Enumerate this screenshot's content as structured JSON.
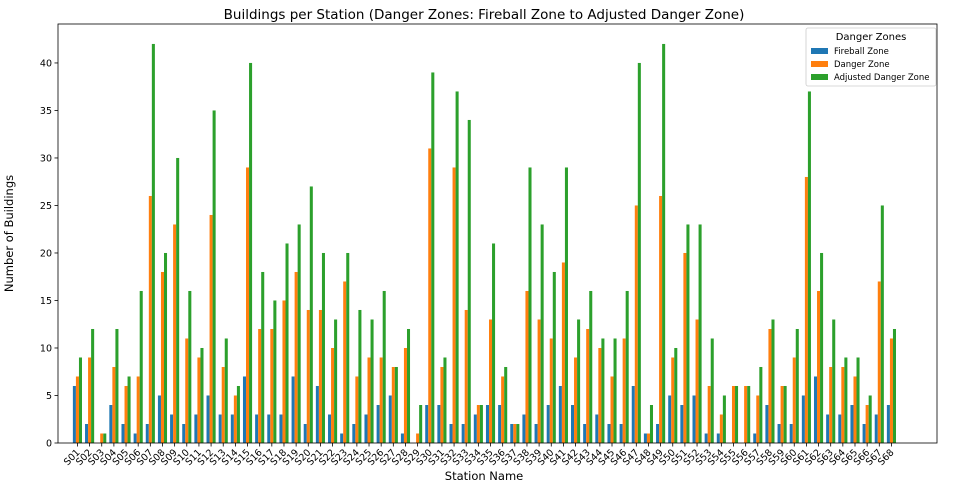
{
  "chart_data": {
    "type": "bar",
    "title": "Buildings per Station (Danger Zones: Fireball Zone to Adjusted Danger Zone)",
    "xlabel": "Station Name",
    "ylabel": "Number of Buildings",
    "ylim": [
      0,
      44.1
    ],
    "yticks": [
      0,
      5,
      10,
      15,
      20,
      25,
      30,
      35,
      40
    ],
    "grid": false,
    "legend": {
      "title": "Danger Zones",
      "placement": "top-right"
    },
    "categories": [
      "S01",
      "S02",
      "S03",
      "S04",
      "S05",
      "S06",
      "S07",
      "S08",
      "S09",
      "S10",
      "S11",
      "S12",
      "S13",
      "S14",
      "S15",
      "S16",
      "S17",
      "S18",
      "S19",
      "S20",
      "S21",
      "S22",
      "S23",
      "S24",
      "S25",
      "S26",
      "S27",
      "S28",
      "S29",
      "S30",
      "S31",
      "S32",
      "S33",
      "S34",
      "S35",
      "S36",
      "S37",
      "S38",
      "S39",
      "S40",
      "S41",
      "S42",
      "S43",
      "S44",
      "S45",
      "S46",
      "S47",
      "S48",
      "S49",
      "S50",
      "S51",
      "S52",
      "S53",
      "S54",
      "S55",
      "S56",
      "S57",
      "S58",
      "S59",
      "S60",
      "S61",
      "S62",
      "S63",
      "S64",
      "S65",
      "S66",
      "S67",
      "S68"
    ],
    "series": [
      {
        "name": "Fireball Zone",
        "color": "#1f77b4",
        "values": [
          6,
          2,
          0,
          4,
          2,
          1,
          2,
          5,
          3,
          2,
          3,
          5,
          3,
          3,
          7,
          3,
          3,
          3,
          7,
          2,
          6,
          3,
          1,
          2,
          3,
          4,
          5,
          1,
          0,
          4,
          4,
          2,
          2,
          3,
          4,
          4,
          2,
          3,
          2,
          4,
          6,
          4,
          2,
          3,
          2,
          2,
          6,
          1,
          2,
          5,
          4,
          5,
          1,
          1,
          0,
          0,
          1,
          4,
          2,
          2,
          5,
          7,
          3,
          3,
          4,
          2,
          3,
          4
        ]
      },
      {
        "name": "Danger Zone",
        "color": "#ff7f0e",
        "values": [
          7,
          9,
          1,
          8,
          6,
          7,
          26,
          18,
          23,
          11,
          9,
          24,
          8,
          5,
          29,
          12,
          12,
          15,
          18,
          14,
          14,
          10,
          17,
          7,
          9,
          9,
          8,
          10,
          1,
          31,
          8,
          29,
          14,
          4,
          13,
          7,
          2,
          16,
          13,
          11,
          19,
          9,
          12,
          10,
          7,
          11,
          25,
          1,
          26,
          9,
          20,
          13,
          6,
          3,
          6,
          6,
          5,
          12,
          6,
          9,
          28,
          16,
          8,
          8,
          7,
          4,
          17,
          11
        ]
      },
      {
        "name": "Adjusted Danger Zone",
        "color": "#2ca02c",
        "values": [
          9,
          12,
          1,
          12,
          7,
          16,
          42,
          20,
          30,
          16,
          10,
          35,
          11,
          6,
          40,
          18,
          15,
          21,
          23,
          27,
          20,
          13,
          20,
          14,
          13,
          16,
          8,
          12,
          4,
          39,
          9,
          37,
          34,
          4,
          21,
          8,
          2,
          29,
          23,
          18,
          29,
          13,
          16,
          11,
          11,
          16,
          40,
          4,
          42,
          10,
          23,
          23,
          11,
          5,
          6,
          6,
          8,
          13,
          6,
          12,
          37,
          20,
          13,
          9,
          9,
          5,
          25,
          12
        ]
      }
    ]
  }
}
